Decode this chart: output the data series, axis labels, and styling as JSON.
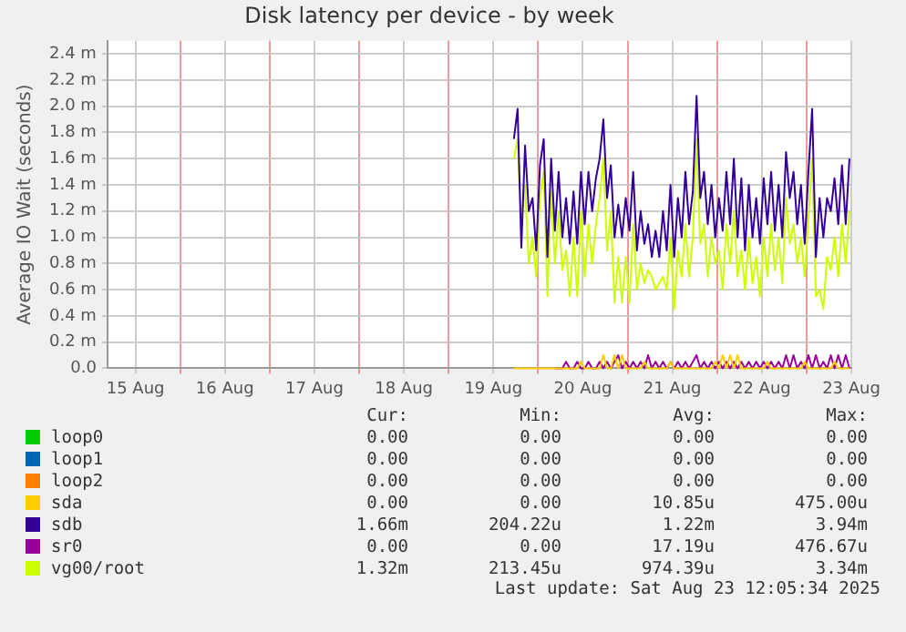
{
  "chart_data": {
    "type": "line",
    "title": "Disk latency per device - by week",
    "ylabel": "Average IO Wait (seconds)",
    "xlim": [
      "2025-08-15T04:30",
      "2025-08-23T12:00"
    ],
    "xticks": [
      {
        "value": "2025-08-15T12:00",
        "label": "15 Aug"
      },
      {
        "value": "2025-08-16T00:00",
        "label": null
      },
      {
        "value": "2025-08-16T12:00",
        "label": "16 Aug"
      },
      {
        "value": "2025-08-17T00:00",
        "label": null
      },
      {
        "value": "2025-08-17T12:00",
        "label": "17 Aug"
      },
      {
        "value": "2025-08-18T00:00",
        "label": null
      },
      {
        "value": "2025-08-18T12:00",
        "label": "18 Aug"
      },
      {
        "value": "2025-08-19T00:00",
        "label": null
      },
      {
        "value": "2025-08-19T12:00",
        "label": "19 Aug"
      },
      {
        "value": "2025-08-20T00:00",
        "label": null
      },
      {
        "value": "2025-08-20T12:00",
        "label": "20 Aug"
      },
      {
        "value": "2025-08-21T00:00",
        "label": null
      },
      {
        "value": "2025-08-21T12:00",
        "label": "21 Aug"
      },
      {
        "value": "2025-08-22T00:00",
        "label": null
      },
      {
        "value": "2025-08-22T12:00",
        "label": "22 Aug"
      },
      {
        "value": "2025-08-23T00:00",
        "label": null
      },
      {
        "value": "2025-08-23T12:00",
        "label": "23 Aug"
      }
    ],
    "ylim": [
      0,
      2.5
    ],
    "yticks": [
      {
        "value": 0,
        "label": "0.0"
      },
      {
        "value": 0.2,
        "label": "0.2 m"
      },
      {
        "value": 0.4,
        "label": "0.4 m"
      },
      {
        "value": 0.6,
        "label": "0.6 m"
      },
      {
        "value": 0.8,
        "label": "0.8 m"
      },
      {
        "value": 1,
        "label": "1.0 m"
      },
      {
        "value": 1.2,
        "label": "1.2 m"
      },
      {
        "value": 1.4,
        "label": "1.4 m"
      },
      {
        "value": 1.6,
        "label": "1.6 m"
      },
      {
        "value": 1.8,
        "label": "1.8 m"
      },
      {
        "value": 2,
        "label": "2.0 m"
      },
      {
        "value": 2.2,
        "label": "2.2 m"
      },
      {
        "value": 2.4,
        "label": "2.4 m"
      }
    ],
    "grid": true,
    "legend": "bottom",
    "marker": "none",
    "line_style": "solid",
    "x": [
      "2025-08-19T17:30",
      "2025-08-19T18:30",
      "2025-08-19T19:30",
      "2025-08-19T20:30",
      "2025-08-19T21:30",
      "2025-08-19T22:30",
      "2025-08-19T23:30",
      "2025-08-20T00:30",
      "2025-08-20T01:30",
      "2025-08-20T02:30",
      "2025-08-20T03:30",
      "2025-08-20T04:30",
      "2025-08-20T05:30",
      "2025-08-20T06:30",
      "2025-08-20T07:30",
      "2025-08-20T08:30",
      "2025-08-20T09:30",
      "2025-08-20T10:30",
      "2025-08-20T11:30",
      "2025-08-20T12:30",
      "2025-08-20T13:30",
      "2025-08-20T14:30",
      "2025-08-20T15:30",
      "2025-08-20T16:30",
      "2025-08-20T17:30",
      "2025-08-20T18:30",
      "2025-08-20T19:30",
      "2025-08-20T20:30",
      "2025-08-20T21:30",
      "2025-08-20T22:30",
      "2025-08-20T23:30",
      "2025-08-21T00:30",
      "2025-08-21T01:30",
      "2025-08-21T02:30",
      "2025-08-21T03:30",
      "2025-08-21T04:30",
      "2025-08-21T05:30",
      "2025-08-21T06:30",
      "2025-08-21T07:30",
      "2025-08-21T08:30",
      "2025-08-21T09:30",
      "2025-08-21T10:30",
      "2025-08-21T11:30",
      "2025-08-21T12:30",
      "2025-08-21T13:30",
      "2025-08-21T14:30",
      "2025-08-21T15:30",
      "2025-08-21T16:30",
      "2025-08-21T17:30",
      "2025-08-21T18:30",
      "2025-08-21T19:30",
      "2025-08-21T20:30",
      "2025-08-21T21:30",
      "2025-08-21T22:30",
      "2025-08-21T23:30",
      "2025-08-22T00:30",
      "2025-08-22T01:30",
      "2025-08-22T02:30",
      "2025-08-22T03:30",
      "2025-08-22T04:30",
      "2025-08-22T05:30",
      "2025-08-22T06:30",
      "2025-08-22T07:30",
      "2025-08-22T08:30",
      "2025-08-22T09:30",
      "2025-08-22T10:30",
      "2025-08-22T11:30",
      "2025-08-22T12:30",
      "2025-08-22T13:30",
      "2025-08-22T14:30",
      "2025-08-22T15:30",
      "2025-08-22T16:30",
      "2025-08-22T17:30",
      "2025-08-22T18:30",
      "2025-08-22T19:30",
      "2025-08-22T20:30",
      "2025-08-22T21:30",
      "2025-08-22T22:30",
      "2025-08-22T23:30",
      "2025-08-23T00:30",
      "2025-08-23T01:30",
      "2025-08-23T02:30",
      "2025-08-23T03:30",
      "2025-08-23T04:30",
      "2025-08-23T05:30",
      "2025-08-23T06:30",
      "2025-08-23T07:30",
      "2025-08-23T08:30",
      "2025-08-23T09:30",
      "2025-08-23T10:30",
      "2025-08-23T11:30"
    ],
    "series": [
      {
        "name": "loop0",
        "color": "#00cc00",
        "values": [
          null,
          null,
          null,
          null,
          null,
          null,
          null,
          null,
          null,
          null,
          null,
          null,
          null,
          null,
          null,
          null,
          null,
          null,
          null,
          null,
          null,
          null,
          null,
          null,
          null,
          null,
          null,
          null,
          null,
          null,
          null,
          null,
          null,
          null,
          null,
          null,
          null,
          null,
          null,
          null,
          null,
          null,
          null,
          null,
          null,
          null,
          null,
          null,
          null,
          null,
          null,
          null,
          null,
          null,
          null,
          null,
          null,
          null,
          null,
          null,
          null,
          null,
          null,
          null,
          null,
          null,
          null,
          null,
          null,
          null,
          null,
          null,
          null,
          null,
          null,
          null,
          null,
          null,
          null,
          null,
          null,
          null,
          null,
          null,
          null,
          null,
          null,
          null,
          null,
          null,
          null
        ]
      },
      {
        "name": "loop1",
        "color": "#0066b3",
        "values": [
          null,
          null,
          null,
          null,
          null,
          null,
          null,
          null,
          null,
          null,
          null,
          null,
          null,
          null,
          null,
          null,
          null,
          null,
          null,
          null,
          null,
          null,
          null,
          null,
          null,
          null,
          null,
          null,
          null,
          null,
          null,
          null,
          null,
          null,
          null,
          null,
          null,
          null,
          null,
          null,
          null,
          null,
          null,
          null,
          null,
          null,
          null,
          null,
          null,
          null,
          null,
          null,
          null,
          null,
          null,
          null,
          null,
          null,
          null,
          null,
          null,
          null,
          null,
          null,
          null,
          null,
          null,
          null,
          null,
          null,
          null,
          null,
          null,
          null,
          null,
          null,
          null,
          null,
          null,
          null,
          null,
          null,
          null,
          null,
          null,
          null,
          null,
          null,
          null,
          null,
          null
        ]
      },
      {
        "name": "loop2",
        "color": "#ff8000",
        "values": [
          null,
          null,
          null,
          null,
          null,
          null,
          null,
          null,
          null,
          null,
          null,
          null,
          null,
          null,
          null,
          null,
          null,
          null,
          null,
          null,
          null,
          null,
          null,
          null,
          null,
          null,
          null,
          null,
          null,
          null,
          null,
          null,
          null,
          null,
          null,
          null,
          null,
          null,
          null,
          null,
          null,
          null,
          null,
          null,
          null,
          null,
          null,
          null,
          null,
          null,
          null,
          null,
          null,
          null,
          null,
          null,
          null,
          null,
          null,
          null,
          null,
          null,
          null,
          null,
          null,
          null,
          null,
          null,
          null,
          null,
          null,
          null,
          null,
          null,
          null,
          null,
          null,
          null,
          null,
          null,
          null,
          null,
          null,
          null,
          null,
          null,
          null,
          null,
          null,
          null,
          null
        ]
      },
      {
        "name": "sda",
        "color": "#ffcc00",
        "values": [
          0,
          0,
          0,
          0,
          0,
          0,
          0,
          0,
          0,
          0,
          0,
          0,
          0,
          0,
          0,
          0,
          0,
          0,
          0.05,
          0,
          0,
          0,
          0,
          0,
          0.1,
          0,
          0,
          0.1,
          0,
          0.1,
          0,
          0,
          0,
          0,
          0,
          0.05,
          0,
          0,
          0,
          0,
          0,
          0,
          0.05,
          0,
          0,
          0,
          0,
          0,
          0,
          0,
          0,
          0,
          0,
          0,
          0.05,
          0,
          0.1,
          0,
          0.1,
          0,
          0.1,
          0,
          0,
          0,
          0,
          0,
          0,
          0,
          0.05,
          0,
          0,
          0,
          0,
          0,
          0,
          0,
          0,
          0,
          0.05,
          0,
          0,
          0,
          0,
          0,
          0,
          0,
          0.05,
          0,
          0,
          0,
          0
        ]
      },
      {
        "name": "sdb",
        "color": "#330099",
        "values": [
          1.75,
          1.98,
          0.92,
          1.7,
          1.2,
          1.3,
          0.9,
          1.55,
          1.75,
          0.85,
          1.6,
          1.05,
          1.5,
          1,
          1.3,
          0.95,
          1.35,
          0.95,
          1.5,
          1.1,
          1.5,
          1.2,
          1.45,
          1.6,
          1.9,
          1.3,
          1.55,
          1,
          1.25,
          1,
          1.3,
          1.05,
          1.5,
          0.9,
          1.2,
          0.95,
          1.1,
          0.85,
          1.05,
          0.85,
          1.2,
          0.9,
          1.4,
          0.85,
          1.3,
          1,
          1.5,
          1.1,
          1.35,
          2.08,
          1.3,
          1.5,
          1.1,
          1.4,
          1,
          1.3,
          1.05,
          1.5,
          1.1,
          1.6,
          1,
          1.45,
          0.9,
          1.4,
          1,
          1.3,
          0.95,
          1.45,
          1.1,
          1.5,
          1.05,
          1.4,
          1,
          1.65,
          1.3,
          1.5,
          1.1,
          1.4,
          0.95,
          1.5,
          1.98,
          0.85,
          1.3,
          1,
          1.3,
          1.2,
          1.45,
          1.1,
          1.55,
          1.1,
          1.6
        ]
      },
      {
        "name": "sr0",
        "color": "#990099",
        "values": [
          null,
          null,
          null,
          null,
          null,
          null,
          null,
          null,
          null,
          null,
          null,
          0,
          0,
          0,
          0.05,
          0,
          0,
          0.05,
          0,
          0,
          0.05,
          0,
          0,
          0.05,
          0,
          0.05,
          0,
          0.05,
          0.1,
          0,
          0.05,
          0,
          0.05,
          0,
          0.05,
          0,
          0.1,
          0,
          0.05,
          0,
          0.05,
          0,
          0.05,
          0,
          0.05,
          0,
          0.05,
          0,
          0.05,
          0.1,
          0,
          0.05,
          0,
          0.05,
          0,
          0.05,
          0,
          0.05,
          0,
          0.05,
          0,
          0.05,
          0,
          0.05,
          0,
          0.05,
          0,
          0.05,
          0,
          0.05,
          0,
          0.05,
          0,
          0.1,
          0,
          0.1,
          0,
          0.05,
          0,
          0.1,
          0,
          0.1,
          0,
          0.05,
          0,
          0.1,
          0,
          0.1,
          0,
          0.1,
          0
        ]
      },
      {
        "name": "vg00/root",
        "color": "#ccff00",
        "values": [
          1.6,
          1.75,
          1.1,
          1.4,
          0.8,
          1,
          0.7,
          1.3,
          1.5,
          0.55,
          1.35,
          0.8,
          1.2,
          0.75,
          0.9,
          0.55,
          1,
          0.55,
          1.2,
          0.7,
          1.1,
          0.8,
          1.1,
          1.3,
          1.6,
          0.9,
          1.2,
          0.5,
          0.85,
          0.5,
          0.85,
          0.5,
          1.1,
          0.6,
          0.8,
          0.65,
          0.75,
          0.7,
          0.6,
          0.65,
          0.7,
          0.6,
          1,
          0.45,
          0.9,
          0.7,
          1.1,
          0.7,
          1,
          1.75,
          0.95,
          1.1,
          0.7,
          1,
          0.8,
          0.9,
          0.6,
          1.1,
          0.8,
          1.2,
          0.7,
          0.9,
          0.6,
          1,
          0.65,
          0.85,
          0.55,
          1,
          0.7,
          1.1,
          0.75,
          1,
          0.65,
          1.3,
          0.95,
          1.1,
          0.8,
          1,
          0.7,
          1.15,
          1.6,
          0.55,
          0.6,
          0.45,
          0.85,
          0.75,
          1,
          0.7,
          1.1,
          0.8,
          1.2
        ]
      }
    ],
    "annotations": [
      "Cur:",
      "Min:",
      "Avg:",
      "Max:",
      "0.00",
      "0.00",
      "0.00",
      "0.00",
      "0.00",
      "0.00",
      "0.00",
      "0.00",
      "0.00",
      "0.00",
      "0.00",
      "0.00",
      "0.00",
      "0.00",
      "10.85u",
      "475.00u",
      "1.66m",
      "204.22u",
      "1.22m",
      "3.94m",
      "0.00",
      "0.00",
      "17.19u",
      "476.67u",
      "1.32m",
      "213.45u",
      "974.39u",
      "3.34m",
      "Last update: Sat Aug 23 12:05:34 2025"
    ]
  }
}
